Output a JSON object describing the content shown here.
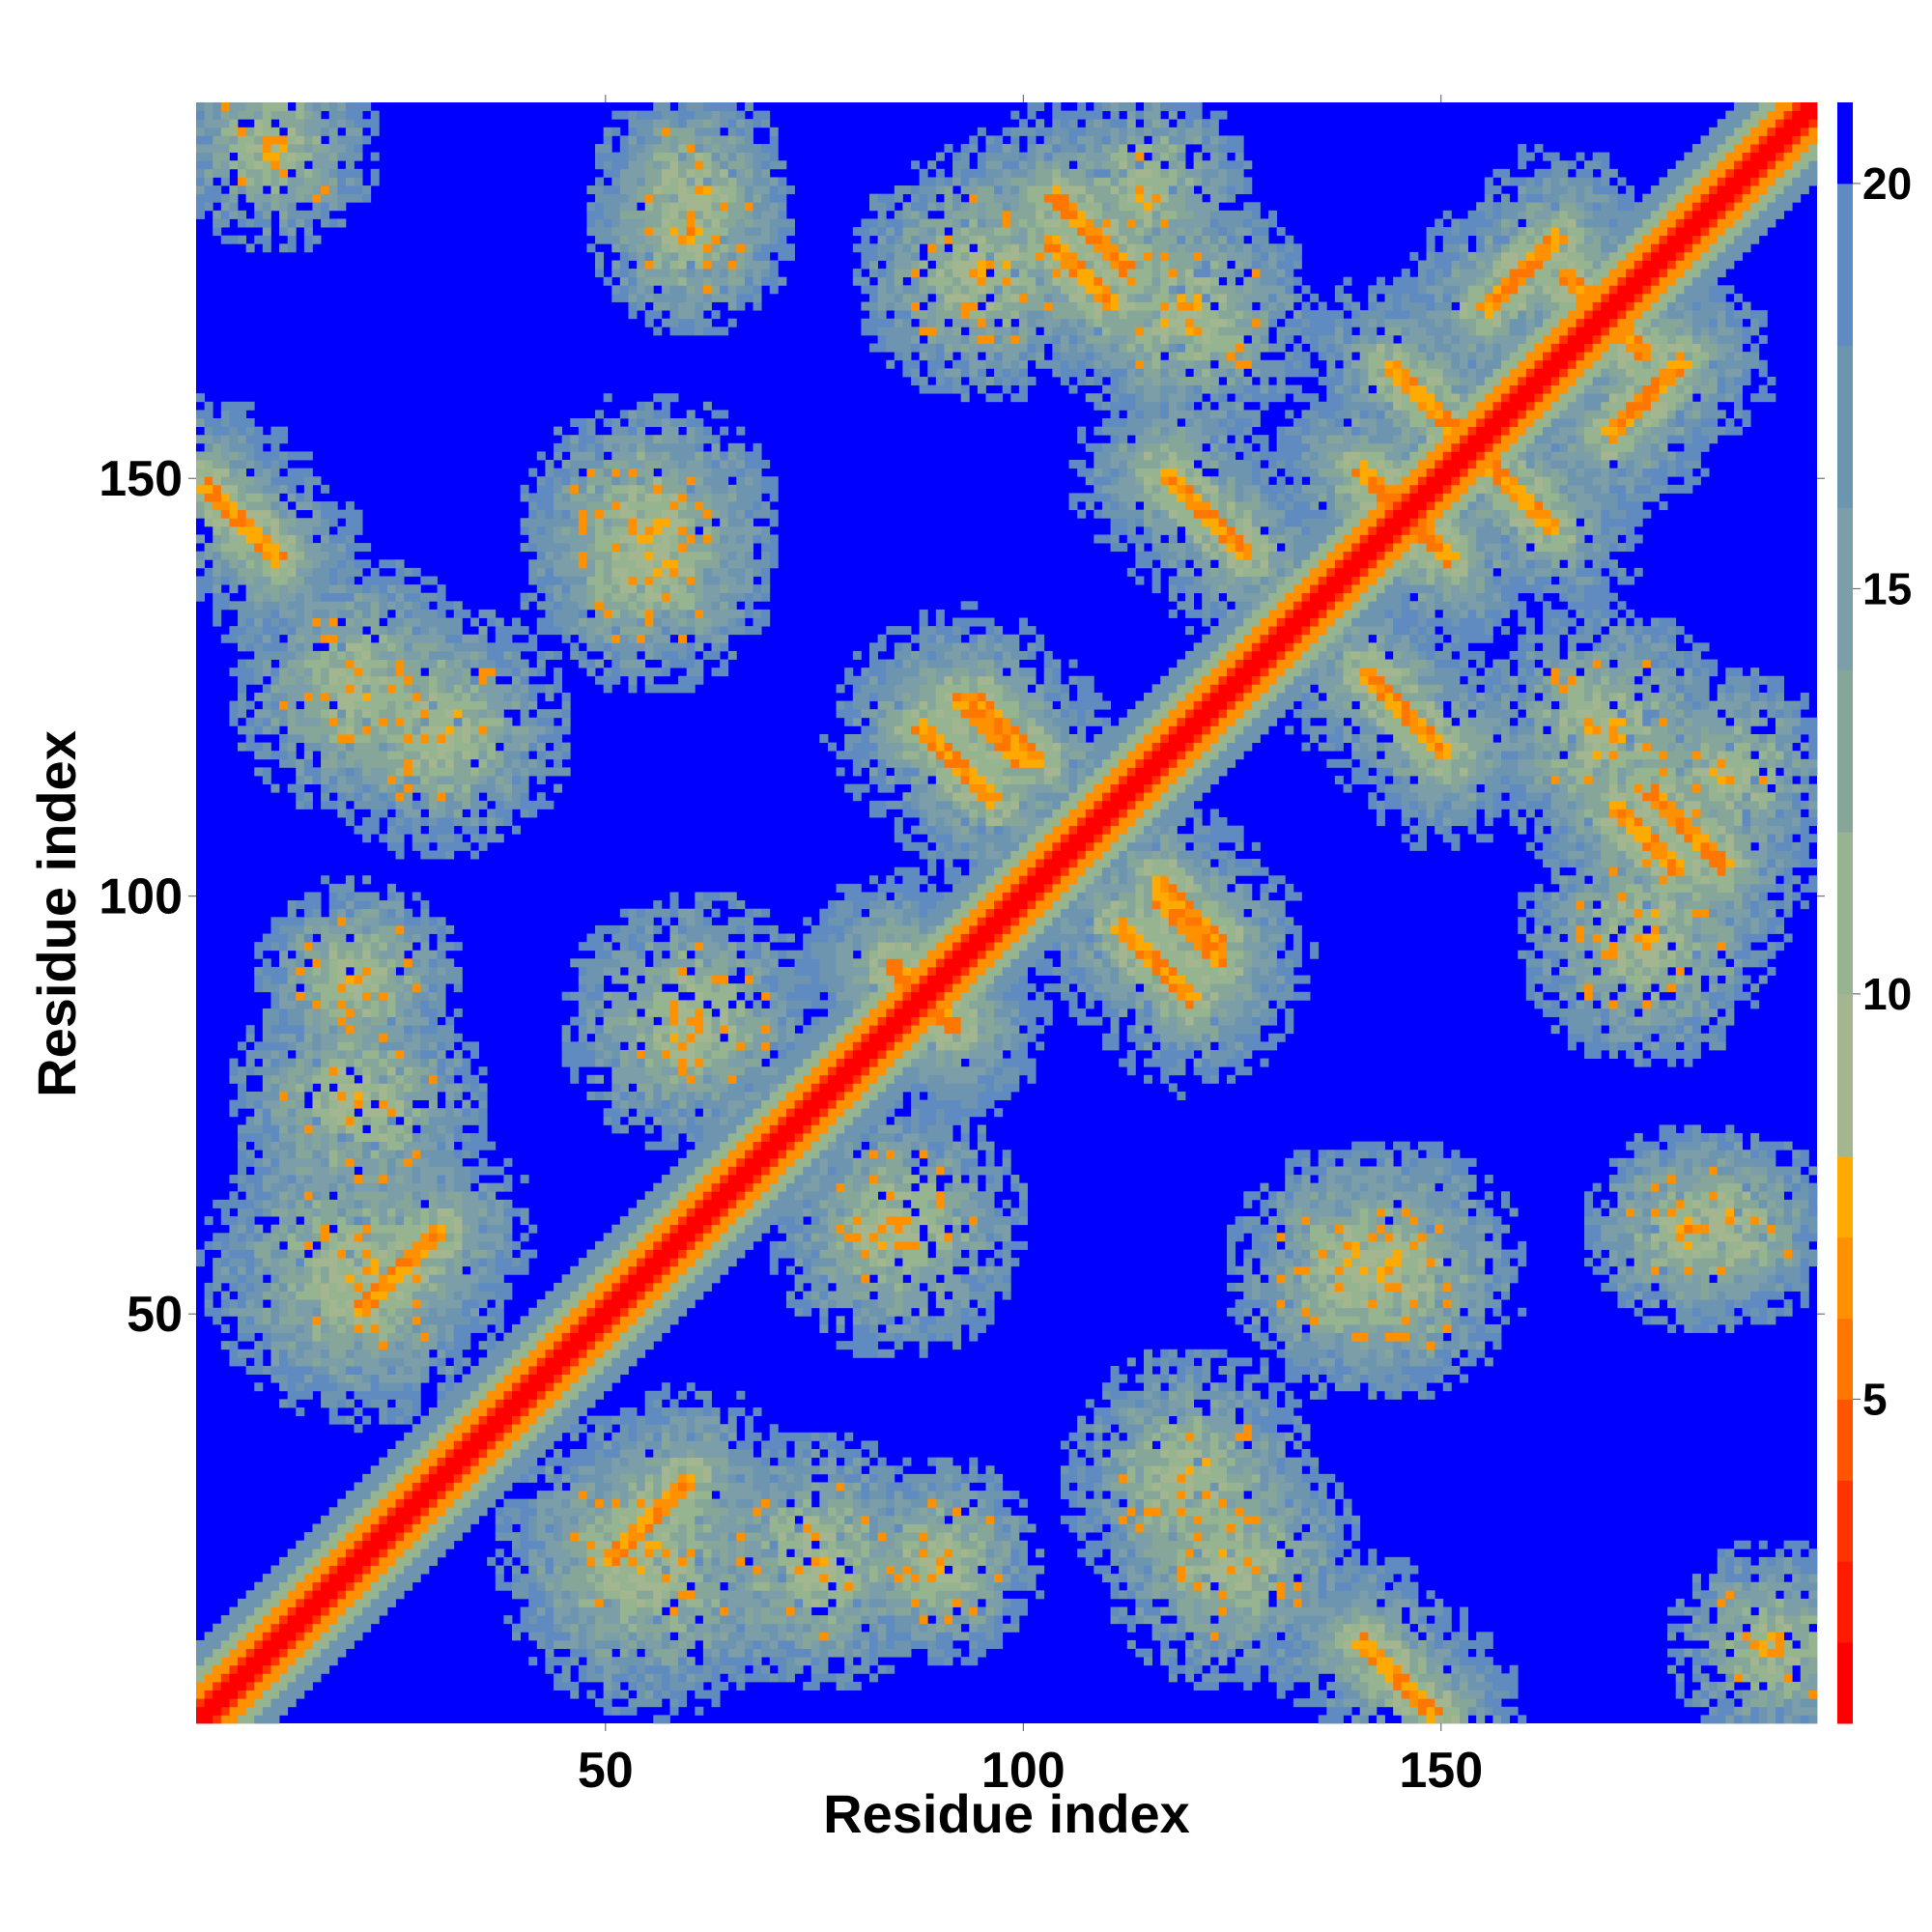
{
  "chart_data": {
    "type": "heatmap",
    "title": "",
    "xlabel": "Residue index",
    "ylabel": "Residue index",
    "n_residues": 195,
    "xlim": [
      1,
      195
    ],
    "ylim": [
      1,
      195
    ],
    "x_ticks": [
      50,
      100,
      150
    ],
    "y_ticks": [
      50,
      100,
      150
    ],
    "colorbar": {
      "range": [
        1,
        21
      ],
      "ticks": [
        5,
        10,
        15,
        20
      ],
      "levels": [
        {
          "from": 1,
          "to": 2,
          "color": "#ff0000"
        },
        {
          "from": 2,
          "to": 3,
          "color": "#ff1a00"
        },
        {
          "from": 3,
          "to": 4,
          "color": "#ff3300"
        },
        {
          "from": 4,
          "to": 5,
          "color": "#ff5500"
        },
        {
          "from": 5,
          "to": 6,
          "color": "#ff7700"
        },
        {
          "from": 6,
          "to": 7,
          "color": "#ff9000"
        },
        {
          "from": 7,
          "to": 8,
          "color": "#ffaa00"
        },
        {
          "from": 8,
          "to": 10,
          "color": "#a3b690"
        },
        {
          "from": 10,
          "to": 12,
          "color": "#97b490"
        },
        {
          "from": 12,
          "to": 14,
          "color": "#86a69a"
        },
        {
          "from": 14,
          "to": 16,
          "color": "#7c9ea8"
        },
        {
          "from": 16,
          "to": 18,
          "color": "#6e95b0"
        },
        {
          "from": 18,
          "to": 20,
          "color": "#5f8bc0"
        },
        {
          "from": 20,
          "to": 21,
          "color": "#0000ff"
        }
      ]
    },
    "background_value": 21,
    "contact_features": [
      {
        "kind": "diagonal",
        "i": [
          1,
          195
        ],
        "offset": 0
      },
      {
        "kind": "antiparallel",
        "center": [
          147,
          145
        ],
        "length": 12
      },
      {
        "kind": "antiparallel",
        "center": [
          108,
          180
        ],
        "length": 12
      },
      {
        "kind": "antiparallel",
        "center": [
          122,
          146
        ],
        "length": 14
      },
      {
        "kind": "antiparallel",
        "center": [
          92,
          116
        ],
        "length": 12
      },
      {
        "kind": "antiparallel",
        "center": [
          145,
          6
        ],
        "length": 12
      },
      {
        "kind": "antiparallel",
        "center": [
          120,
          98
        ],
        "length": 10
      },
      {
        "kind": "antiparallel",
        "center": [
          170,
          170
        ],
        "length": 14
      },
      {
        "kind": "antiparallel",
        "center": [
          175,
          107
        ],
        "length": 10
      },
      {
        "kind": "antiparallel",
        "center": [
          148,
          160
        ],
        "length": 10
      },
      {
        "kind": "antiparallel",
        "center": [
          88,
          88
        ],
        "length": 10
      },
      {
        "kind": "antiparallel",
        "center": [
          120,
          96
        ],
        "length": 10
      },
      {
        "kind": "parallel",
        "center": [
          55,
          25
        ],
        "length": 14
      },
      {
        "kind": "parallel",
        "center": [
          175,
          160
        ],
        "length": 12
      },
      {
        "kind": "patch",
        "center": [
          60,
          185
        ],
        "radius": 8
      },
      {
        "kind": "patch",
        "center": [
          95,
          175
        ],
        "radius": 10
      },
      {
        "kind": "patch",
        "center": [
          85,
          60
        ],
        "radius": 10
      },
      {
        "kind": "patch",
        "center": [
          75,
          20
        ],
        "radius": 10
      },
      {
        "kind": "patch",
        "center": [
          20,
          90
        ],
        "radius": 8
      },
      {
        "kind": "patch",
        "center": [
          30,
          120
        ],
        "radius": 10
      },
      {
        "kind": "patch",
        "center": [
          170,
          120
        ],
        "radius": 10
      },
      {
        "kind": "patch",
        "center": [
          185,
          115
        ],
        "radius": 8
      },
      {
        "kind": "patch",
        "center": [
          180,
          60
        ],
        "radius": 8
      },
      {
        "kind": "patch",
        "center": [
          190,
          10
        ],
        "radius": 8
      },
      {
        "kind": "patch",
        "center": [
          140,
          55
        ],
        "radius": 10
      },
      {
        "kind": "patch",
        "center": [
          125,
          20
        ],
        "radius": 10
      },
      {
        "kind": "patch",
        "center": [
          55,
          145
        ],
        "radius": 10
      },
      {
        "kind": "patch",
        "center": [
          20,
          55
        ],
        "radius": 12
      }
    ]
  }
}
